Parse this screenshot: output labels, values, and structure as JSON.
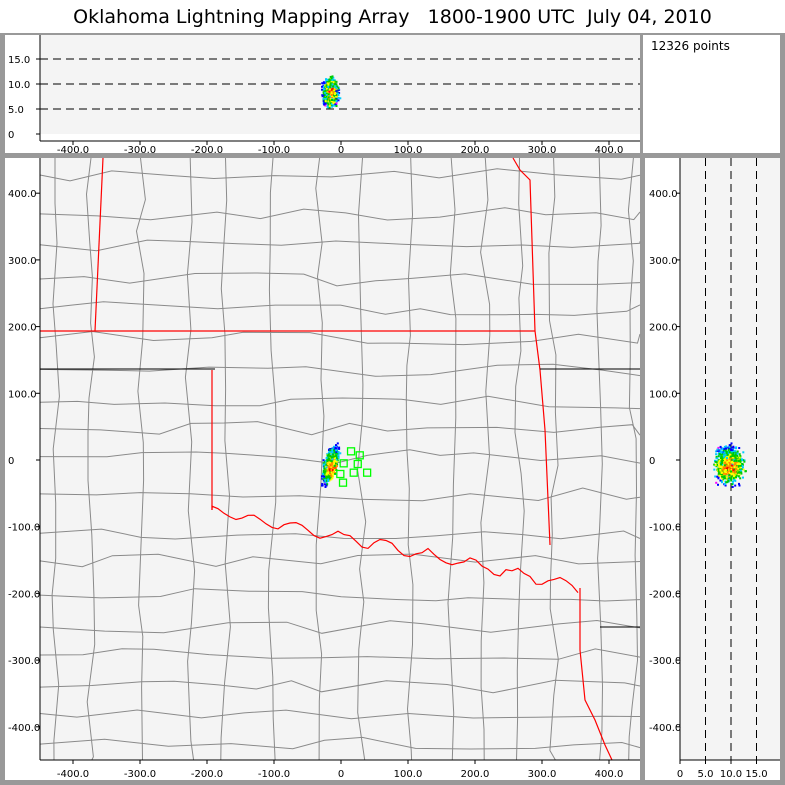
{
  "title": "Oklahoma Lightning Mapping Array   1800-1900 UTC  July 04, 2010",
  "info": {
    "point_count": "12326 points"
  },
  "chart_data": [
    {
      "type": "scatter",
      "panel": "altitude-vs-east-west",
      "xlim": [
        -450,
        450
      ],
      "ylim": [
        0,
        20
      ],
      "xticks": [
        "-400.0",
        "-300.0",
        "-200.0",
        "-100.0",
        "0",
        "100.0",
        "200.0",
        "300.0",
        "400.0"
      ],
      "yticks": [
        "0",
        "5.0",
        "10.0",
        "15.0"
      ],
      "grid": "dashed horizontal at 5, 10, 15",
      "source_extent": {
        "x_km": [
          -35,
          5
        ],
        "altitude_km": [
          3,
          13
        ]
      }
    },
    {
      "type": "scatter",
      "panel": "plan-view-map",
      "xlim": [
        -450,
        450
      ],
      "ylim": [
        -450,
        450
      ],
      "xticks": [
        "-400.0",
        "-300.0",
        "-200.0",
        "-100.0",
        "0",
        "100.0",
        "200.0",
        "300.0",
        "400.0"
      ],
      "yticks": [
        "-400.0",
        "-300.0",
        "-200.0",
        "-100.0",
        "0",
        "100.0",
        "200.0",
        "300.0",
        "400.0"
      ],
      "source_extent": {
        "x_km": [
          -30,
          0
        ],
        "y_km": [
          -45,
          35
        ]
      },
      "stations_km": [
        [
          15,
          13
        ],
        [
          28,
          7
        ],
        [
          4,
          -5
        ],
        [
          25,
          -6
        ],
        [
          -1,
          -21
        ],
        [
          19,
          -19
        ],
        [
          39,
          -19
        ],
        [
          3,
          -34
        ]
      ],
      "station_color": "#00ff00",
      "state_border_color": "#ff0000",
      "county_border_color": "#888888"
    },
    {
      "type": "scatter",
      "panel": "north-south-vs-altitude",
      "xlim": [
        0,
        20
      ],
      "ylim": [
        -450,
        450
      ],
      "xticks": [
        "0",
        "5.0",
        "10.0",
        "15.0"
      ],
      "yticks": [
        "-400.0",
        "-300.0",
        "-200.0",
        "-100.0",
        "0",
        "100.0",
        "200.0",
        "300.0",
        "400.0"
      ],
      "grid": "dashed vertical at 5, 10, 15"
    }
  ],
  "density_colors": [
    "#ff00ff",
    "#0000ff",
    "#00ccff",
    "#00cc00",
    "#ffff00",
    "#ff8800",
    "#ff0000"
  ]
}
